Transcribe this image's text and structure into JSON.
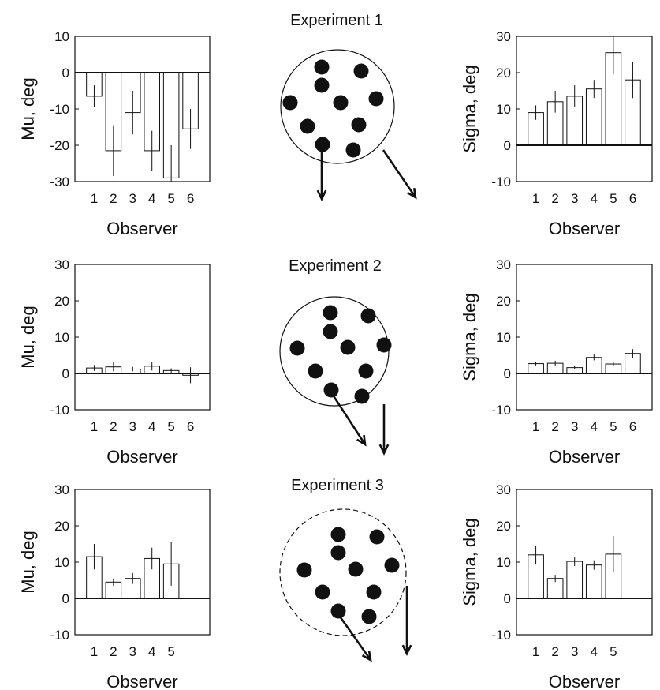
{
  "titles": [
    "Experiment 1",
    "Experiment 2",
    "Experiment 3"
  ],
  "colors": {
    "bar_fill": "#ffffff",
    "stroke": "#111111",
    "dot": "#111111"
  },
  "chart_data": [
    {
      "type": "bar",
      "xlabel": "Observer",
      "ylabel": "Mu, deg",
      "categories": [
        "1",
        "2",
        "3",
        "4",
        "5",
        "6"
      ],
      "ylim": [
        -30,
        10
      ],
      "yticks": [
        "10",
        "0",
        "-10",
        "-20",
        "-30"
      ],
      "values": [
        -6.5,
        -21.5,
        -11,
        -21.5,
        -29,
        -15.5
      ],
      "errors": [
        3,
        7,
        6,
        5.5,
        9,
        5.5
      ]
    },
    {
      "type": "bar",
      "xlabel": "Observer",
      "ylabel": "Sigma, deg",
      "categories": [
        "1",
        "2",
        "3",
        "4",
        "5",
        "6"
      ],
      "ylim": [
        -10,
        30
      ],
      "yticks": [
        "30",
        "20",
        "10",
        "0",
        "-10"
      ],
      "values": [
        9,
        12,
        13.5,
        15.5,
        25.5,
        18
      ],
      "errors": [
        2,
        3,
        3,
        2.5,
        6,
        5
      ]
    },
    {
      "type": "bar",
      "xlabel": "Observer",
      "ylabel": "Mu, deg",
      "categories": [
        "1",
        "2",
        "3",
        "4",
        "5",
        "6"
      ],
      "ylim": [
        -10,
        30
      ],
      "yticks": [
        "30",
        "20",
        "10",
        "0",
        "-10"
      ],
      "values": [
        1.5,
        1.8,
        1.2,
        2.0,
        0.8,
        -0.5
      ],
      "errors": [
        0.8,
        1.2,
        0.6,
        1.2,
        0.6,
        2.2
      ]
    },
    {
      "type": "bar",
      "xlabel": "Observer",
      "ylabel": "Sigma, deg",
      "categories": [
        "1",
        "2",
        "3",
        "4",
        "5",
        "6"
      ],
      "ylim": [
        -10,
        30
      ],
      "yticks": [
        "30",
        "20",
        "10",
        "0",
        "-10"
      ],
      "values": [
        2.7,
        2.8,
        1.6,
        4.4,
        2.6,
        5.5
      ],
      "errors": [
        0.5,
        0.7,
        0.4,
        0.8,
        0.5,
        1.2
      ]
    },
    {
      "type": "bar",
      "xlabel": "Observer",
      "ylabel": "Mu, deg",
      "categories": [
        "1",
        "2",
        "3",
        "4",
        "5"
      ],
      "ylim": [
        -10,
        30
      ],
      "yticks": [
        "30",
        "20",
        "10",
        "0",
        "-10"
      ],
      "values": [
        11.5,
        4.5,
        5.5,
        11,
        9.5
      ],
      "errors": [
        3.5,
        1,
        1.5,
        3,
        6
      ]
    },
    {
      "type": "bar",
      "xlabel": "Observer",
      "ylabel": "Sigma, deg",
      "categories": [
        "1",
        "2",
        "3",
        "4",
        "5"
      ],
      "ylim": [
        -10,
        30
      ],
      "yticks": [
        "30",
        "20",
        "10",
        "0",
        "-10"
      ],
      "values": [
        12,
        5.5,
        10.2,
        9.2,
        12.2
      ],
      "errors": [
        2.5,
        1,
        1.3,
        1.3,
        5
      ]
    }
  ]
}
